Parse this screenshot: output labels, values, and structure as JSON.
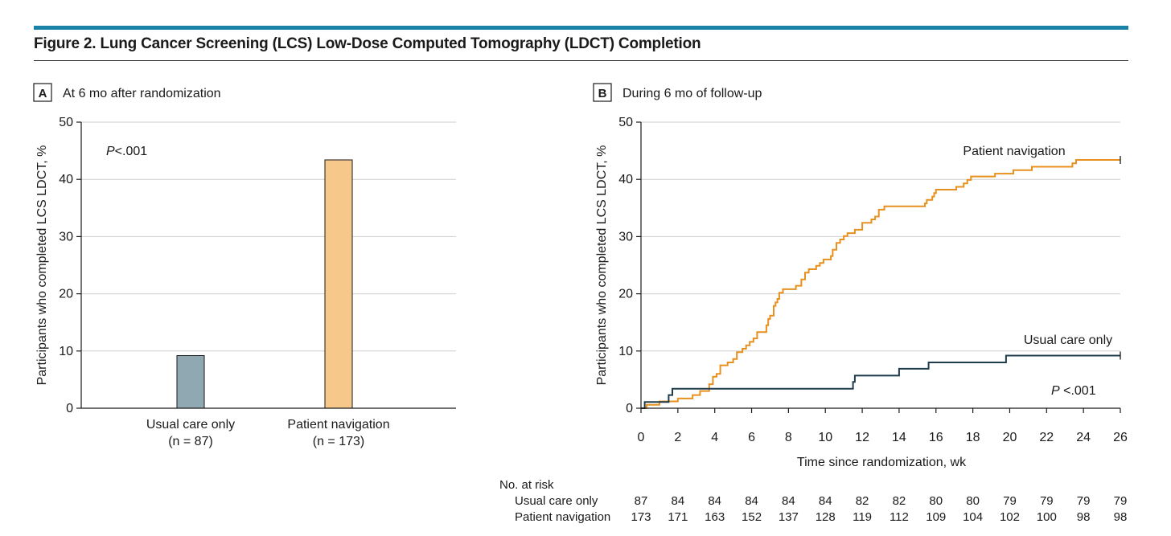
{
  "figure": {
    "title": "Figure 2. Lung Cancer Screening (LCS) Low-Dose Computed Tomography (LDCT) Completion",
    "accent_color": "#1b82a7"
  },
  "chart_data": [
    {
      "type": "bar",
      "panel_letter": "A",
      "panel_title": "At 6 mo after randomization",
      "ylabel": "Participants who completed LCS LDCT, %",
      "ylim": [
        0,
        50
      ],
      "yticks": [
        0,
        10,
        20,
        30,
        40,
        50
      ],
      "grid": true,
      "annotation": {
        "prefix": "P",
        "text": "<.001"
      },
      "categories": [
        {
          "label": "Usual care only",
          "n_label": "(n = 87)",
          "value": 9.2,
          "color": "#8fa8b2"
        },
        {
          "label": "Patient navigation",
          "n_label": "(n = 173)",
          "value": 43.4,
          "color": "#f6c98a"
        }
      ]
    },
    {
      "type": "line",
      "step": true,
      "panel_letter": "B",
      "panel_title": "During 6 mo of follow-up",
      "xlabel": "Time since randomization, wk",
      "ylabel": "Participants who completed LCS LDCT, %",
      "xlim": [
        0,
        26
      ],
      "ylim": [
        0,
        50
      ],
      "xticks": [
        0,
        2,
        4,
        6,
        8,
        10,
        12,
        14,
        16,
        18,
        20,
        22,
        24,
        26
      ],
      "yticks": [
        0,
        10,
        20,
        30,
        40,
        50
      ],
      "grid": true,
      "annotation": {
        "prefix": "P",
        "text": " <.001"
      },
      "series": [
        {
          "name": "Patient navigation",
          "color": "#e8901e",
          "points": [
            [
              0,
              0
            ],
            [
              0.3,
              0.6
            ],
            [
              1,
              1.2
            ],
            [
              2,
              1.7
            ],
            [
              2.8,
              2.3
            ],
            [
              3.2,
              3
            ],
            [
              3.7,
              4.2
            ],
            [
              3.9,
              5.5
            ],
            [
              4.1,
              6
            ],
            [
              4.3,
              7.5
            ],
            [
              4.7,
              8
            ],
            [
              5,
              8.6
            ],
            [
              5.2,
              9.8
            ],
            [
              5.5,
              10.4
            ],
            [
              5.7,
              11
            ],
            [
              5.9,
              11.6
            ],
            [
              6.1,
              12.2
            ],
            [
              6.3,
              13.3
            ],
            [
              6.8,
              14.5
            ],
            [
              6.9,
              15.6
            ],
            [
              7,
              16.2
            ],
            [
              7.2,
              17.9
            ],
            [
              7.3,
              18.5
            ],
            [
              7.4,
              19.1
            ],
            [
              7.5,
              20.2
            ],
            [
              7.7,
              20.8
            ],
            [
              8.4,
              21.4
            ],
            [
              8.7,
              22.5
            ],
            [
              8.9,
              23.7
            ],
            [
              9.1,
              24.3
            ],
            [
              9.5,
              24.9
            ],
            [
              9.7,
              25.4
            ],
            [
              9.9,
              26
            ],
            [
              10.3,
              26.6
            ],
            [
              10.4,
              27.7
            ],
            [
              10.6,
              28.9
            ],
            [
              10.8,
              29.5
            ],
            [
              11,
              30.1
            ],
            [
              11.2,
              30.6
            ],
            [
              11.6,
              31.2
            ],
            [
              12,
              32.4
            ],
            [
              12.5,
              33
            ],
            [
              12.7,
              33.5
            ],
            [
              12.9,
              34.7
            ],
            [
              13.2,
              35.3
            ],
            [
              15.4,
              35.8
            ],
            [
              15.5,
              36.4
            ],
            [
              15.8,
              37
            ],
            [
              15.9,
              37.6
            ],
            [
              16,
              38.2
            ],
            [
              17.1,
              38.7
            ],
            [
              17.5,
              39.3
            ],
            [
              17.7,
              39.9
            ],
            [
              17.9,
              40.5
            ],
            [
              19.2,
              41
            ],
            [
              20.2,
              41.6
            ],
            [
              21.2,
              42.2
            ],
            [
              23.4,
              42.8
            ],
            [
              23.6,
              43.4
            ],
            [
              26,
              43.4
            ]
          ],
          "censor_end": true
        },
        {
          "name": "Usual care only",
          "color": "#1e3c4c",
          "points": [
            [
              0,
              0
            ],
            [
              0.2,
              1.1
            ],
            [
              1.5,
              2.3
            ],
            [
              1.7,
              3.4
            ],
            [
              11.5,
              4.6
            ],
            [
              11.6,
              5.7
            ],
            [
              14,
              6.9
            ],
            [
              15.6,
              8
            ],
            [
              19.8,
              9.2
            ],
            [
              26,
              9.2
            ]
          ],
          "censor_end": true
        }
      ],
      "risk_table": {
        "title": "No. at risk",
        "rows": [
          {
            "label": "Usual care only",
            "values": [
              "87",
              "84",
              "84",
              "84",
              "84",
              "84",
              "82",
              "82",
              "80",
              "80",
              "79",
              "79",
              "79",
              "79"
            ]
          },
          {
            "label": "Patient navigation",
            "values": [
              "173",
              "171",
              "163",
              "152",
              "137",
              "128",
              "119",
              "112",
              "109",
              "104",
              "102",
              "100",
              "98",
              "98"
            ]
          }
        ]
      }
    }
  ]
}
